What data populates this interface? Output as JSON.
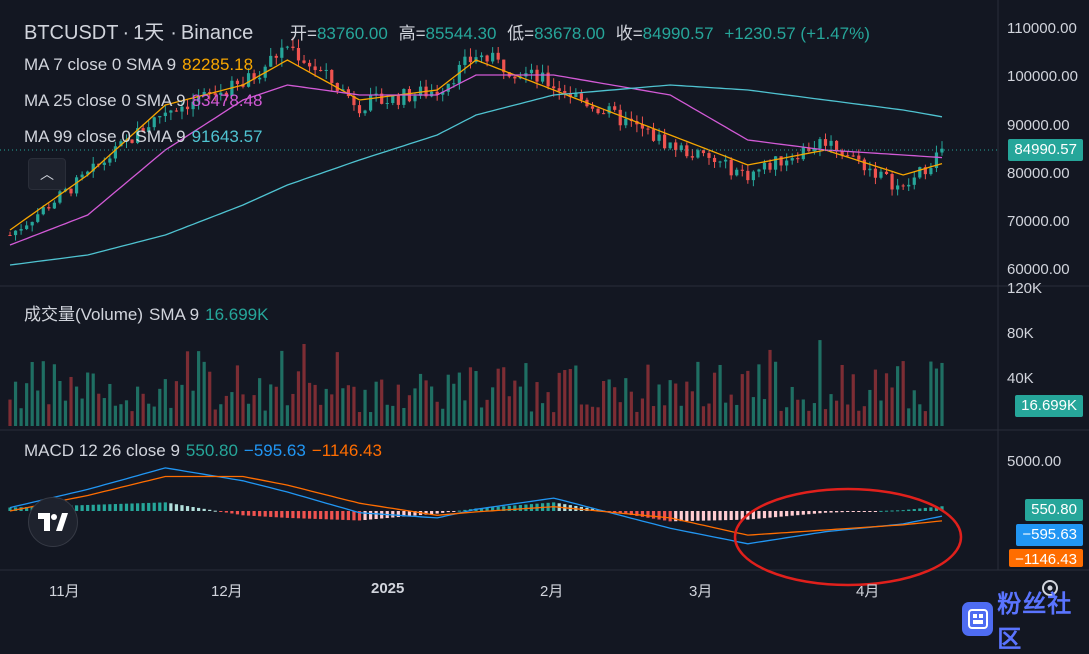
{
  "header": {
    "symbol": "BTCUSDT",
    "interval": "1天",
    "exchange": "Binance",
    "open_label": "开=",
    "open": "83760.00",
    "high_label": "高=",
    "high": "85544.30",
    "low_label": "低=",
    "low": "83678.00",
    "close_label": "收=",
    "close": "84990.57",
    "change": "+1230.57 (+1.47%)"
  },
  "indicators": {
    "ma7": {
      "label": "MA 7 close 0 SMA 9",
      "value": "82285.18"
    },
    "ma25": {
      "label": "MA 25 close 0 SMA 9",
      "value": "83478.48"
    },
    "ma99": {
      "label": "MA 99 close 0 SMA 9",
      "value": "91643.57"
    },
    "volume": {
      "label": "成交量(Volume)",
      "sma": "SMA 9",
      "value": "16.699K"
    },
    "macd": {
      "label": "MACD 12 26 close 9",
      "hist": "550.80",
      "macd": "−595.63",
      "signal": "−1146.43"
    }
  },
  "price_badge": "84990.57",
  "volume_badge": "16.699K",
  "macd_badges": {
    "hist": "550.80",
    "macd": "−595.63",
    "signal": "−1146.43"
  },
  "price_axis": [
    "110000.00",
    "100000.00",
    "90000.00",
    "80000.00",
    "70000.00",
    "60000.00"
  ],
  "volume_axis": [
    "120K",
    "80K",
    "40K"
  ],
  "macd_axis": [
    "5000.00"
  ],
  "x_axis": [
    "11月",
    "12月",
    "2025",
    "2月",
    "3月",
    "4月"
  ],
  "watermark": {
    "text": "粉丝社区"
  },
  "colors": {
    "bg": "#131722",
    "up": "#26a69a",
    "down": "#ef5350",
    "ma7": "#f7a600",
    "ma25": "#d25ad6",
    "ma99": "#4fc3d1",
    "macd": "#2196f3",
    "signal": "#ff6d00",
    "annotation": "#e0201c",
    "grid": "#1f2430"
  },
  "chart_data": [
    {
      "type": "candlestick",
      "title": "BTCUSDT · 1天 · Binance",
      "x": [
        "2024-10-28",
        "2024-11-11",
        "2024-11-25",
        "2024-12-09",
        "2024-12-17",
        "2024-12-30",
        "2025-01-13",
        "2025-01-20",
        "2025-02-03",
        "2025-02-24",
        "2025-03-10",
        "2025-03-24",
        "2025-04-07",
        "2025-04-14"
      ],
      "close": [
        68000,
        80000,
        93000,
        98000,
        106000,
        94000,
        97000,
        104000,
        98000,
        86000,
        80000,
        87000,
        77000,
        84990.57
      ],
      "ylim": [
        58000,
        113000
      ],
      "last": {
        "open": 83760.0,
        "high": 85544.3,
        "low": 83678.0,
        "close": 84990.57
      },
      "series": [
        {
          "name": "MA 7",
          "values": [
            69000,
            80000,
            94000,
            98000,
            103000,
            95000,
            97000,
            103000,
            97000,
            88000,
            82000,
            85000,
            80000,
            82285.18
          ]
        },
        {
          "name": "MA 25",
          "values": [
            66000,
            72000,
            85000,
            95000,
            98000,
            96000,
            96000,
            100000,
            100000,
            96000,
            87000,
            85000,
            84000,
            83478.48
          ]
        },
        {
          "name": "MA 99",
          "values": [
            62000,
            64000,
            68000,
            74000,
            78000,
            83000,
            88000,
            92000,
            96000,
            98000,
            97000,
            95000,
            93000,
            91643.57
          ]
        }
      ]
    },
    {
      "type": "bar",
      "title": "成交量(Volume)",
      "ylim": [
        0,
        120000
      ],
      "last": 16699
    },
    {
      "type": "line",
      "title": "MACD 12 26 close 9",
      "series": [
        {
          "name": "MACD",
          "values": [
            400,
            2500,
            5000,
            3500,
            2200,
            -200,
            -800,
            200,
            1500,
            -2000,
            -3800,
            -2400,
            -1500,
            -595.63
          ]
        },
        {
          "name": "Signal",
          "values": [
            0,
            1800,
            4000,
            4000,
            3000,
            900,
            -500,
            -100,
            500,
            -800,
            -2800,
            -2200,
            -1600,
            -1146.43
          ]
        }
      ],
      "last_hist": 550.8
    }
  ]
}
